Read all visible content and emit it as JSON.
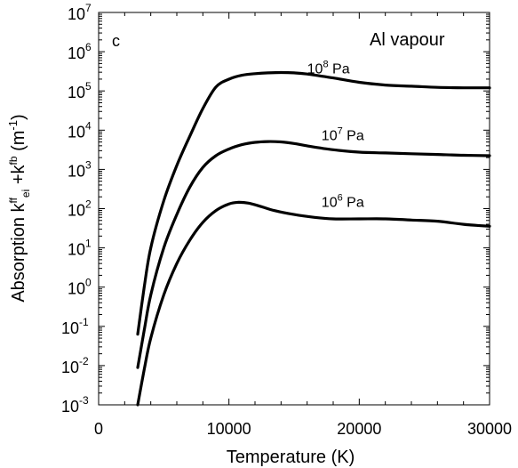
{
  "chart_data": {
    "type": "line",
    "panel_label": "c",
    "annotation": "Al vapour",
    "xlabel": "Temperature (K)",
    "ylabel": {
      "main": "Absorption k",
      "sup1": "ff",
      "sub1": "ei",
      "mid": " +k",
      "sup2": "fb",
      "unit": " (m",
      "unit_sup": "-1",
      "unit_close": ")"
    },
    "xlim": [
      0,
      30000
    ],
    "ylim_log10": [
      -3,
      7
    ],
    "y_scale": "log",
    "grid": false,
    "x_ticks": [
      0,
      10000,
      20000,
      30000
    ],
    "x_tick_labels": [
      "0",
      "10000",
      "20000",
      "30000"
    ],
    "y_ticks": [
      {
        "value_log10": 7,
        "base": "10",
        "exp": "7"
      },
      {
        "value_log10": 6,
        "base": "10",
        "exp": "6"
      },
      {
        "value_log10": 5,
        "base": "10",
        "exp": "5"
      },
      {
        "value_log10": 4,
        "base": "10",
        "exp": "4"
      },
      {
        "value_log10": 3,
        "base": "10",
        "exp": "3"
      },
      {
        "value_log10": 2,
        "base": "10",
        "exp": "2"
      },
      {
        "value_log10": 1,
        "base": "10",
        "exp": "1"
      },
      {
        "value_log10": 0,
        "base": "10",
        "exp": "0"
      },
      {
        "value_log10": -1,
        "base": "10",
        "exp": "-1"
      },
      {
        "value_log10": -2,
        "base": "10",
        "exp": "-2"
      },
      {
        "value_log10": -3,
        "base": "10",
        "exp": "-3"
      }
    ],
    "series": [
      {
        "name": "10^8 Pa",
        "label": {
          "base": "10",
          "exp": "8",
          "unit": " Pa",
          "x": 16000,
          "y_log10": 5.6
        },
        "x": [
          3000,
          3500,
          4000,
          5000,
          6000,
          7000,
          8000,
          9000,
          10000,
          11000,
          12000,
          13000,
          14000,
          15000,
          16000,
          18000,
          20000,
          22000,
          24000,
          26000,
          28000,
          30000
        ],
        "y_log10": [
          -1.2,
          0.0,
          1.0,
          2.2,
          3.1,
          3.85,
          4.55,
          5.1,
          5.3,
          5.4,
          5.44,
          5.46,
          5.47,
          5.46,
          5.43,
          5.33,
          5.22,
          5.15,
          5.12,
          5.09,
          5.08,
          5.08
        ]
      },
      {
        "name": "10^7 Pa",
        "label": {
          "base": "10",
          "exp": "7",
          "unit": " Pa",
          "x": 17100,
          "y_log10": 3.9
        },
        "x": [
          3000,
          3500,
          4000,
          5000,
          6000,
          7000,
          8000,
          9000,
          10000,
          11000,
          12000,
          13000,
          14000,
          15000,
          16000,
          18000,
          20000,
          22000,
          24000,
          26000,
          28000,
          30000
        ],
        "y_log10": [
          -2.05,
          -1.1,
          -0.2,
          1.0,
          1.85,
          2.55,
          3.05,
          3.35,
          3.52,
          3.63,
          3.69,
          3.71,
          3.7,
          3.66,
          3.6,
          3.5,
          3.44,
          3.42,
          3.4,
          3.38,
          3.36,
          3.35
        ]
      },
      {
        "name": "10^6 Pa",
        "label": {
          "base": "10",
          "exp": "6",
          "unit": " Pa",
          "x": 17100,
          "y_log10": 2.2
        },
        "x": [
          3000,
          3500,
          4000,
          5000,
          6000,
          7000,
          8000,
          9000,
          10000,
          10700,
          11500,
          12500,
          13500,
          15000,
          16500,
          18000,
          20000,
          22000,
          24000,
          26000,
          28000,
          30000
        ],
        "y_log10": [
          -3.0,
          -2.1,
          -1.3,
          -0.2,
          0.6,
          1.2,
          1.65,
          1.95,
          2.12,
          2.16,
          2.14,
          2.05,
          1.95,
          1.85,
          1.78,
          1.74,
          1.74,
          1.74,
          1.71,
          1.68,
          1.6,
          1.55
        ]
      }
    ]
  }
}
